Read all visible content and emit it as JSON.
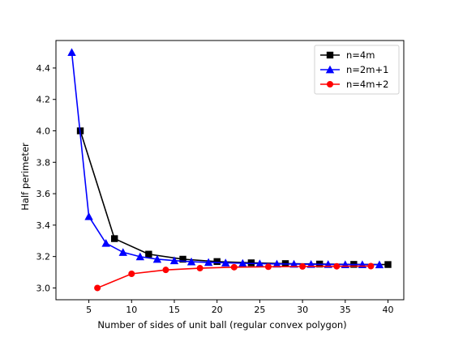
{
  "chart_data": {
    "type": "line",
    "title": "",
    "xlabel": "Number of sides of unit ball (regular convex polygon)",
    "ylabel": "Half perimeter",
    "xlim": [
      1.15,
      41.85
    ],
    "ylim": [
      2.925,
      4.575
    ],
    "xticks": [
      5,
      10,
      15,
      20,
      25,
      30,
      35,
      40
    ],
    "yticks": [
      3.0,
      3.2,
      3.4,
      3.6,
      3.8,
      4.0,
      4.2,
      4.4
    ],
    "ytick_labels": [
      "3.0",
      "3.2",
      "3.4",
      "3.6",
      "3.8",
      "4.0",
      "4.2",
      "4.4"
    ],
    "grid": false,
    "legend_position": "top-right",
    "series": [
      {
        "name": "n=4m",
        "color": "#000000",
        "marker": "square",
        "x": [
          4,
          8,
          12,
          16,
          20,
          24,
          28,
          32,
          36,
          40
        ],
        "y": [
          4.0,
          3.314,
          3.215,
          3.183,
          3.168,
          3.16,
          3.155,
          3.152,
          3.15,
          3.149
        ]
      },
      {
        "name": "n=2m+1",
        "color": "#0000ff",
        "marker": "triangle",
        "x": [
          3,
          5,
          7,
          9,
          11,
          13,
          15,
          17,
          19,
          21,
          23,
          25,
          27,
          29,
          31,
          33,
          35,
          37,
          39
        ],
        "y": [
          4.5,
          3.455,
          3.285,
          3.227,
          3.199,
          3.183,
          3.174,
          3.167,
          3.163,
          3.16,
          3.157,
          3.155,
          3.153,
          3.152,
          3.151,
          3.15,
          3.149,
          3.149,
          3.148
        ]
      },
      {
        "name": "n=4m+2",
        "color": "#ff0000",
        "marker": "circle",
        "x": [
          6,
          10,
          14,
          18,
          22,
          26,
          30,
          34,
          38
        ],
        "y": [
          3.0,
          3.09,
          3.115,
          3.126,
          3.132,
          3.135,
          3.137,
          3.138,
          3.139
        ]
      }
    ]
  }
}
